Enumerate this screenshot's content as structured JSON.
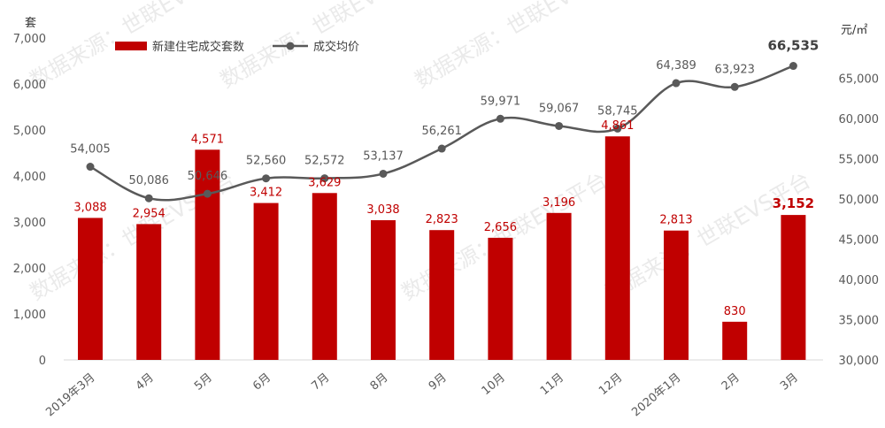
{
  "chart_data": {
    "type": "bar+line",
    "categories": [
      "2019年3月",
      "4月",
      "5月",
      "6月",
      "7月",
      "8月",
      "9月",
      "10月",
      "11月",
      "12月",
      "2020年1月",
      "2月",
      "3月"
    ],
    "series": [
      {
        "name": "新建住宅成交套数",
        "type": "bar",
        "axis": "left",
        "color": "#c00000",
        "values": [
          3088,
          2954,
          4571,
          3412,
          3629,
          3038,
          2823,
          2656,
          3196,
          4861,
          2813,
          830,
          3152
        ],
        "labels": [
          "3,088",
          "2,954",
          "4,571",
          "3,412",
          "3,629",
          "3,038",
          "2,823",
          "2,656",
          "3,196",
          "4,861",
          "2,813",
          "830",
          "3,152"
        ]
      },
      {
        "name": "成交均价",
        "type": "line",
        "axis": "right",
        "color": "#595959",
        "values": [
          54005,
          50086,
          50646,
          52560,
          52572,
          53137,
          56261,
          59971,
          59067,
          58745,
          64389,
          63923,
          66535
        ],
        "labels": [
          "54,005",
          "50,086",
          "50,646",
          "52,560",
          "52,572",
          "53,137",
          "56,261",
          "59,971",
          "59,067",
          "58,745",
          "64,389",
          "63,923",
          "66,535"
        ]
      }
    ],
    "y_left": {
      "label": "套",
      "lim": [
        0,
        7000
      ],
      "ticks": [
        "0",
        "1,000",
        "2,000",
        "3,000",
        "4,000",
        "5,000",
        "6,000",
        "7,000"
      ]
    },
    "y_right": {
      "label": "元/㎡",
      "lim": [
        30000,
        70000
      ],
      "ticks": [
        "30,000",
        "35,000",
        "40,000",
        "45,000",
        "50,000",
        "55,000",
        "60,000",
        "65,000"
      ]
    },
    "legend_position": "top-left",
    "grid": false
  },
  "watermarks": [
    "数据来源：世联EVS平台",
    "数据来源：世联EVS平台",
    "数据来源：世联EVS平台",
    "数据来源：世联EVS平台",
    "数据来源：世联EVS平台",
    "数据来源：世联EVS平台"
  ]
}
